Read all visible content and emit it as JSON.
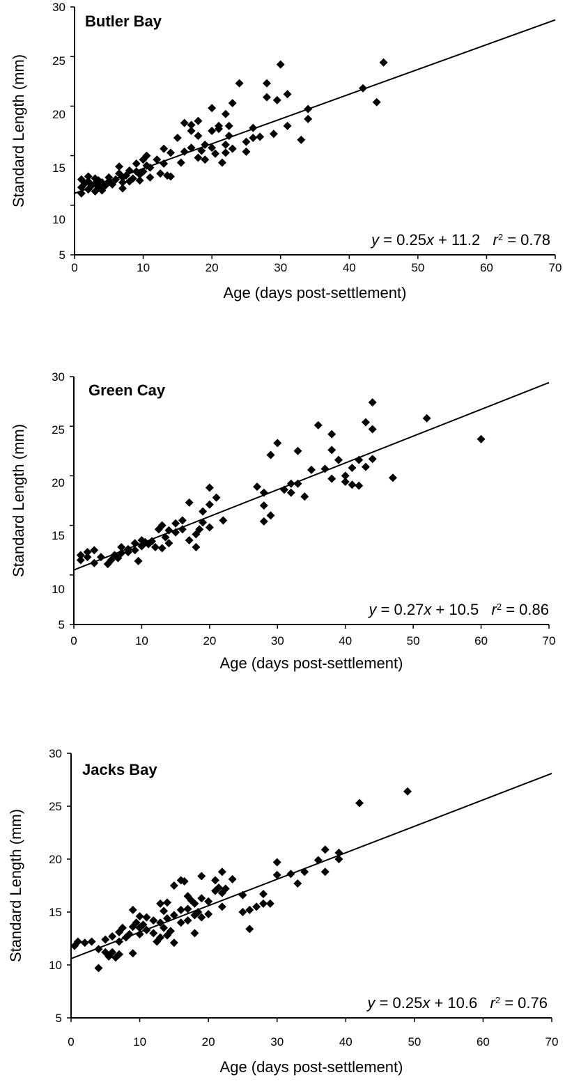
{
  "chart_data": [
    {
      "type": "scatter",
      "title": "Butler Bay",
      "xlabel": "Age (days post-settlement)",
      "ylabel": "Standard Length (mm)",
      "xlim": [
        0,
        70
      ],
      "ylim": [
        5,
        30
      ],
      "xticks": [
        "0",
        "10",
        "20",
        "30",
        "40",
        "50",
        "60",
        "70"
      ],
      "yticks": [
        "5",
        "10",
        "15",
        "20",
        "25",
        "30"
      ],
      "grid": false,
      "equation": {
        "y": "y",
        "eq1": " = 0.25",
        "x": "x",
        "eq2": " + 11.2   ",
        "r": "r",
        "sup": "2",
        "eq3": " = 0.78"
      },
      "fit": {
        "slope": 0.25,
        "intercept": 11.2,
        "r2": 0.78
      },
      "points": [
        [
          1,
          11.2
        ],
        [
          1,
          11.8
        ],
        [
          1,
          12.6
        ],
        [
          1.5,
          12.2
        ],
        [
          2,
          11.6
        ],
        [
          2,
          12.4
        ],
        [
          2,
          12.9
        ],
        [
          2.5,
          12.0
        ],
        [
          3,
          11.4
        ],
        [
          3,
          12.2
        ],
        [
          3,
          12.7
        ],
        [
          3.5,
          11.8
        ],
        [
          3.5,
          12.5
        ],
        [
          4,
          11.5
        ],
        [
          4,
          12.3
        ],
        [
          4.5,
          12.0
        ],
        [
          5,
          12.4
        ],
        [
          5,
          12.8
        ],
        [
          5.5,
          12.1
        ],
        [
          6,
          12.6
        ],
        [
          6.5,
          13.2
        ],
        [
          6.5,
          13.9
        ],
        [
          7,
          11.7
        ],
        [
          7,
          12.3
        ],
        [
          7,
          12.8
        ],
        [
          7.5,
          13.0
        ],
        [
          8,
          12.4
        ],
        [
          8,
          13.5
        ],
        [
          8.5,
          12.7
        ],
        [
          9,
          13.4
        ],
        [
          9,
          14.2
        ],
        [
          9.5,
          12.5
        ],
        [
          9.5,
          13.1
        ],
        [
          10,
          13.4
        ],
        [
          10,
          14.6
        ],
        [
          10.5,
          15.0
        ],
        [
          10.5,
          14.0
        ],
        [
          11,
          12.8
        ],
        [
          11,
          13.8
        ],
        [
          12,
          14.6
        ],
        [
          12.5,
          13.2
        ],
        [
          13,
          15.7
        ],
        [
          13,
          14.2
        ],
        [
          13.5,
          13.0
        ],
        [
          14,
          15.3
        ],
        [
          14,
          12.9
        ],
        [
          15,
          16.8
        ],
        [
          15.5,
          14.3
        ],
        [
          16,
          18.3
        ],
        [
          16,
          15.4
        ],
        [
          17,
          17.5
        ],
        [
          17,
          18.1
        ],
        [
          17,
          15.8
        ],
        [
          18,
          18.5
        ],
        [
          18,
          17.0
        ],
        [
          18,
          14.8
        ],
        [
          18.5,
          15.5
        ],
        [
          19,
          14.6
        ],
        [
          19,
          16.1
        ],
        [
          20,
          19.8
        ],
        [
          20,
          17.5
        ],
        [
          20,
          15.8
        ],
        [
          20.5,
          15.2
        ],
        [
          21,
          18.0
        ],
        [
          21,
          17.7
        ],
        [
          21.5,
          14.3
        ],
        [
          22,
          19.2
        ],
        [
          22,
          16.1
        ],
        [
          22,
          15.3
        ],
        [
          22.5,
          18.0
        ],
        [
          22.5,
          17.0
        ],
        [
          23,
          20.3
        ],
        [
          23,
          15.7
        ],
        [
          24,
          22.3
        ],
        [
          25,
          16.4
        ],
        [
          25,
          15.4
        ],
        [
          26,
          17.8
        ],
        [
          26,
          16.8
        ],
        [
          27,
          16.9
        ],
        [
          28,
          22.3
        ],
        [
          28,
          20.9
        ],
        [
          29,
          17.2
        ],
        [
          29.5,
          20.6
        ],
        [
          30,
          24.2
        ],
        [
          31,
          21.2
        ],
        [
          31,
          18.0
        ],
        [
          33,
          16.6
        ],
        [
          34,
          19.7
        ],
        [
          34,
          18.7
        ],
        [
          42,
          21.8
        ],
        [
          44,
          20.4
        ],
        [
          45,
          24.4
        ]
      ]
    },
    {
      "type": "scatter",
      "title": "Green Cay",
      "xlabel": "Age (days post-settlement)",
      "ylabel": "Standard Length (mm)",
      "xlim": [
        0,
        70
      ],
      "ylim": [
        5,
        30
      ],
      "xticks": [
        "0",
        "10",
        "20",
        "30",
        "40",
        "50",
        "60",
        "70"
      ],
      "yticks": [
        "5",
        "10",
        "15",
        "20",
        "25",
        "30"
      ],
      "grid": false,
      "equation": {
        "y": "y",
        "eq1": " = 0.27",
        "x": "x",
        "eq2": " + 10.5   ",
        "r": "r",
        "sup": "2",
        "eq3": " = 0.86"
      },
      "fit": {
        "slope": 0.27,
        "intercept": 10.5,
        "r2": 0.86
      },
      "points": [
        [
          1,
          11.5
        ],
        [
          1,
          12.0
        ],
        [
          2,
          11.8
        ],
        [
          2,
          12.3
        ],
        [
          3,
          11.2
        ],
        [
          3,
          12.5
        ],
        [
          4,
          11.8
        ],
        [
          5,
          11.1
        ],
        [
          5.5,
          11.5
        ],
        [
          6,
          12.0
        ],
        [
          6.5,
          11.7
        ],
        [
          7,
          12.8
        ],
        [
          7,
          12.2
        ],
        [
          8,
          12.6
        ],
        [
          8,
          12.3
        ],
        [
          9,
          13.2
        ],
        [
          9,
          12.5
        ],
        [
          9.5,
          11.4
        ],
        [
          10,
          13.5
        ],
        [
          10,
          12.9
        ],
        [
          10.5,
          13.3
        ],
        [
          11,
          13.1
        ],
        [
          11.5,
          13.4
        ],
        [
          12,
          12.8
        ],
        [
          12.5,
          14.6
        ],
        [
          13,
          15.0
        ],
        [
          13,
          12.7
        ],
        [
          13.5,
          13.8
        ],
        [
          14,
          14.5
        ],
        [
          14,
          13.2
        ],
        [
          15,
          15.2
        ],
        [
          15,
          14.3
        ],
        [
          16,
          15.5
        ],
        [
          16,
          14.6
        ],
        [
          17,
          17.3
        ],
        [
          17,
          13.5
        ],
        [
          18,
          14.1
        ],
        [
          18,
          12.8
        ],
        [
          18.5,
          14.6
        ],
        [
          19,
          16.4
        ],
        [
          19,
          15.3
        ],
        [
          20,
          18.8
        ],
        [
          20,
          17.1
        ],
        [
          20,
          14.8
        ],
        [
          21,
          17.8
        ],
        [
          22,
          15.5
        ],
        [
          27,
          18.9
        ],
        [
          28,
          18.3
        ],
        [
          28,
          17.0
        ],
        [
          28,
          15.4
        ],
        [
          29,
          22.1
        ],
        [
          29,
          16.0
        ],
        [
          30,
          23.3
        ],
        [
          31,
          18.6
        ],
        [
          32,
          18.3
        ],
        [
          32,
          19.2
        ],
        [
          33,
          22.5
        ],
        [
          33,
          19.2
        ],
        [
          34,
          17.9
        ],
        [
          35,
          20.6
        ],
        [
          36,
          25.1
        ],
        [
          37,
          20.7
        ],
        [
          38,
          24.2
        ],
        [
          38,
          22.6
        ],
        [
          38,
          19.7
        ],
        [
          39,
          21.6
        ],
        [
          40,
          20.0
        ],
        [
          40,
          19.4
        ],
        [
          41,
          20.8
        ],
        [
          41,
          19.1
        ],
        [
          42,
          21.6
        ],
        [
          42,
          19.0
        ],
        [
          43,
          25.4
        ],
        [
          43,
          20.9
        ],
        [
          44,
          27.4
        ],
        [
          44,
          24.7
        ],
        [
          44,
          21.7
        ],
        [
          47,
          19.8
        ],
        [
          52,
          25.8
        ],
        [
          60,
          23.7
        ]
      ]
    },
    {
      "type": "scatter",
      "title": "Jacks Bay",
      "xlabel": "Age (days post-settlement)",
      "ylabel": "Standard Length (mm)",
      "xlim": [
        0,
        70
      ],
      "ylim": [
        5,
        30
      ],
      "xticks": [
        "0",
        "10",
        "20",
        "30",
        "40",
        "50",
        "60",
        "70"
      ],
      "yticks": [
        "5",
        "10",
        "15",
        "20",
        "25",
        "30"
      ],
      "grid": false,
      "equation": {
        "y": "y",
        "eq1": " = 0.25",
        "x": "x",
        "eq2": " + 10.6   ",
        "r": "r",
        "sup": "2",
        "eq3": " = 0.76"
      },
      "fit": {
        "slope": 0.25,
        "intercept": 10.6,
        "r2": 0.76
      },
      "points": [
        [
          0.5,
          11.8
        ],
        [
          1,
          12.2
        ],
        [
          2,
          12.1
        ],
        [
          3,
          12.2
        ],
        [
          4,
          9.7
        ],
        [
          4,
          11.5
        ],
        [
          5,
          11.2
        ],
        [
          5,
          12.4
        ],
        [
          5.5,
          10.8
        ],
        [
          6,
          12.7
        ],
        [
          6,
          11.2
        ],
        [
          6.5,
          10.7
        ],
        [
          7,
          13.1
        ],
        [
          7,
          12.2
        ],
        [
          7,
          11.0
        ],
        [
          7.5,
          13.5
        ],
        [
          8,
          12.6
        ],
        [
          8.5,
          12.9
        ],
        [
          9,
          15.2
        ],
        [
          9,
          13.6
        ],
        [
          9,
          11.1
        ],
        [
          9.5,
          14.0
        ],
        [
          10,
          14.6
        ],
        [
          10,
          13.5
        ],
        [
          10,
          12.9
        ],
        [
          10.5,
          13.8
        ],
        [
          11,
          14.5
        ],
        [
          11,
          13.3
        ],
        [
          12,
          14.2
        ],
        [
          12,
          13.0
        ],
        [
          12.5,
          12.2
        ],
        [
          13,
          15.8
        ],
        [
          13,
          14.0
        ],
        [
          13,
          12.6
        ],
        [
          13.5,
          15.1
        ],
        [
          13.5,
          13.5
        ],
        [
          14,
          15.9
        ],
        [
          14,
          14.4
        ],
        [
          14,
          12.8
        ],
        [
          14.5,
          13.2
        ],
        [
          15,
          17.5
        ],
        [
          15,
          14.7
        ],
        [
          15,
          12.1
        ],
        [
          16,
          18.0
        ],
        [
          16,
          15.2
        ],
        [
          16,
          14.0
        ],
        [
          16.5,
          17.9
        ],
        [
          17,
          16.5
        ],
        [
          17,
          15.3
        ],
        [
          17,
          14.2
        ],
        [
          17.5,
          16.1
        ],
        [
          18,
          15.8
        ],
        [
          18,
          14.7
        ],
        [
          18,
          13.0
        ],
        [
          18.5,
          15.0
        ],
        [
          19,
          18.4
        ],
        [
          19,
          16.3
        ],
        [
          19,
          14.5
        ],
        [
          20,
          16.0
        ],
        [
          20,
          14.8
        ],
        [
          21,
          18.0
        ],
        [
          21,
          17.0
        ],
        [
          21.5,
          17.3
        ],
        [
          22,
          18.8
        ],
        [
          22,
          16.8
        ],
        [
          22,
          15.5
        ],
        [
          22.5,
          17.2
        ],
        [
          23.5,
          18.1
        ],
        [
          25,
          16.6
        ],
        [
          25,
          15.0
        ],
        [
          26,
          13.4
        ],
        [
          26,
          15.2
        ],
        [
          27,
          15.5
        ],
        [
          28,
          16.7
        ],
        [
          28,
          15.8
        ],
        [
          29,
          15.8
        ],
        [
          30,
          19.7
        ],
        [
          30,
          18.5
        ],
        [
          32,
          18.6
        ],
        [
          33,
          17.7
        ],
        [
          34,
          18.8
        ],
        [
          36,
          19.9
        ],
        [
          37,
          20.9
        ],
        [
          37,
          18.8
        ],
        [
          39,
          20.6
        ],
        [
          39,
          20.0
        ],
        [
          42,
          25.3
        ],
        [
          49,
          26.4
        ]
      ]
    }
  ]
}
